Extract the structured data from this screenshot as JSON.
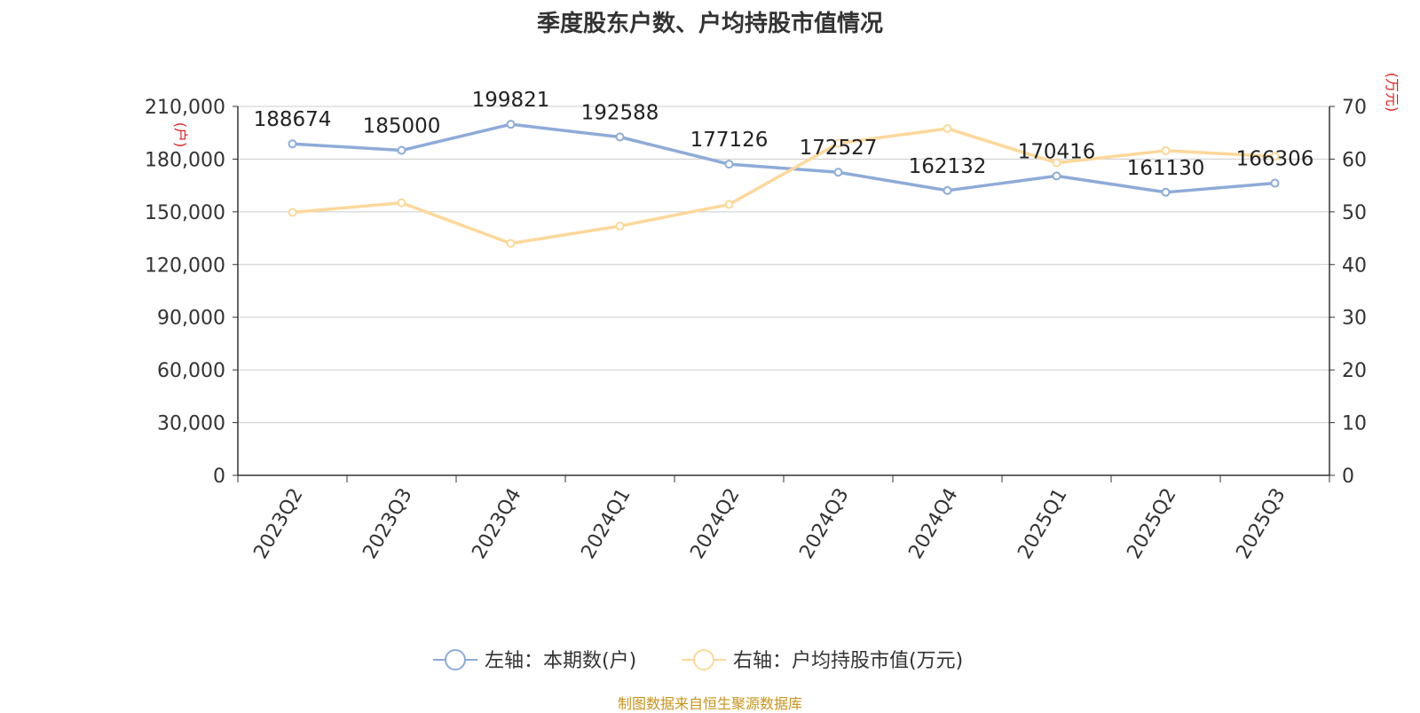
{
  "chart_data": {
    "type": "line",
    "title": "季度股东户数、户均持股市值情况",
    "categories": [
      "2023Q2",
      "2023Q3",
      "2023Q4",
      "2024Q1",
      "2024Q2",
      "2024Q3",
      "2024Q4",
      "2025Q1",
      "2025Q2",
      "2025Q3"
    ],
    "left_axis": {
      "label": "(户)",
      "range": [
        0,
        210000
      ],
      "ticks": [
        "0",
        "30,000",
        "60,000",
        "90,000",
        "120,000",
        "150,000",
        "180,000",
        "210,000"
      ]
    },
    "right_axis": {
      "label": "(万元)",
      "range": [
        0,
        70
      ],
      "ticks": [
        "0",
        "10",
        "20",
        "30",
        "40",
        "50",
        "60",
        "70"
      ]
    },
    "series": [
      {
        "name": "左轴：本期数(户)",
        "axis": "left",
        "color": "#8eabd8",
        "values": [
          188674,
          185000,
          199821,
          192588,
          177126,
          172527,
          162132,
          170416,
          161130,
          166306
        ],
        "data_labels": [
          "188674",
          "185000",
          "199821",
          "192588",
          "177126",
          "172527",
          "162132",
          "170416",
          "161130",
          "166306"
        ]
      },
      {
        "name": "右轴：户均持股市值(万元)",
        "axis": "right",
        "color": "#fcd89a",
        "values": [
          49.9,
          51.7,
          44.0,
          47.3,
          51.4,
          63.0,
          65.8,
          59.3,
          61.6,
          60.5
        ]
      }
    ],
    "grid": true,
    "legend_position": "bottom"
  },
  "footer": {
    "source": "制图数据来自恒生聚源数据库"
  }
}
